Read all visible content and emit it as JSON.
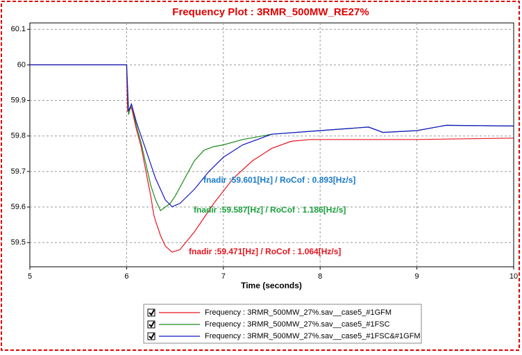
{
  "chart_data": {
    "type": "line",
    "title": "Frequency Plot : 3RMR_500MW_RE27%",
    "x_label": "Time (seconds)",
    "xlim": [
      5,
      10
    ],
    "xticks": [
      5,
      6,
      7,
      8,
      9,
      10
    ],
    "ylim": [
      59.432,
      60.118
    ],
    "yticks": [
      59.5,
      59.6,
      59.7,
      59.8,
      59.9,
      60,
      60.1
    ],
    "grid": true,
    "series": [
      {
        "name": "Frequency : 3RMR_500MW_27%.sav__case5_#1GFM",
        "color": "#e8141e",
        "x": [
          5,
          6,
          6.01,
          6.05,
          6.1,
          6.15,
          6.2,
          6.25,
          6.28,
          6.3,
          6.35,
          6.4,
          6.47,
          6.55,
          6.7,
          6.9,
          7.1,
          7.3,
          7.5,
          7.7,
          7.9,
          8.5,
          9,
          10
        ],
        "values": [
          60,
          60,
          59.87,
          59.88,
          59.82,
          59.77,
          59.7,
          59.63,
          59.58,
          59.56,
          59.52,
          59.49,
          59.473,
          59.48,
          59.53,
          59.61,
          59.68,
          59.73,
          59.765,
          59.785,
          59.79,
          59.79,
          59.79,
          59.794
        ]
      },
      {
        "name": "Frequency : 3RMR_500MW_27%.sav__case5_#1FSC",
        "color": "#1a8a1a",
        "x": [
          5,
          6,
          6.02,
          6.05,
          6.1,
          6.15,
          6.2,
          6.25,
          6.3,
          6.35,
          6.4,
          6.45,
          6.5,
          6.6,
          6.7,
          6.8,
          6.9,
          7,
          7.2,
          7.5,
          8,
          8.5,
          8.65,
          9,
          9.3,
          10
        ],
        "values": [
          60,
          60,
          59.86,
          59.89,
          59.83,
          59.78,
          59.72,
          59.66,
          59.62,
          59.59,
          59.6,
          59.61,
          59.63,
          59.68,
          59.73,
          59.76,
          59.77,
          59.775,
          59.79,
          59.805,
          59.815,
          59.825,
          59.81,
          59.815,
          59.83,
          59.828
        ]
      },
      {
        "name": "Frequency : 3RMR_500MW_27%.sav__case5_#1FSC&#1GFM",
        "color": "#1414c8",
        "x": [
          5,
          6,
          6.02,
          6.05,
          6.1,
          6.15,
          6.2,
          6.3,
          6.4,
          6.47,
          6.55,
          6.7,
          6.85,
          7,
          7.2,
          7.5,
          8,
          8.5,
          8.65,
          9,
          9.3,
          10
        ],
        "values": [
          60,
          60,
          59.87,
          59.89,
          59.84,
          59.8,
          59.76,
          59.68,
          59.62,
          59.601,
          59.61,
          59.65,
          59.7,
          59.74,
          59.775,
          59.805,
          59.815,
          59.825,
          59.81,
          59.815,
          59.83,
          59.828
        ]
      }
    ],
    "annotations": [
      {
        "text": "fnadir :59.601[Hz]  / RoCof : 0.893[Hz/s]",
        "color": "#1a7ac8"
      },
      {
        "text": "fnadir :59.587[Hz]  / RoCof : 1.186[Hz/s]",
        "color": "#1aa03c"
      },
      {
        "text": "fnadir :59.471[Hz]  / RoCof : 1.064[Hz/s]",
        "color": "#e8141e"
      }
    ]
  }
}
